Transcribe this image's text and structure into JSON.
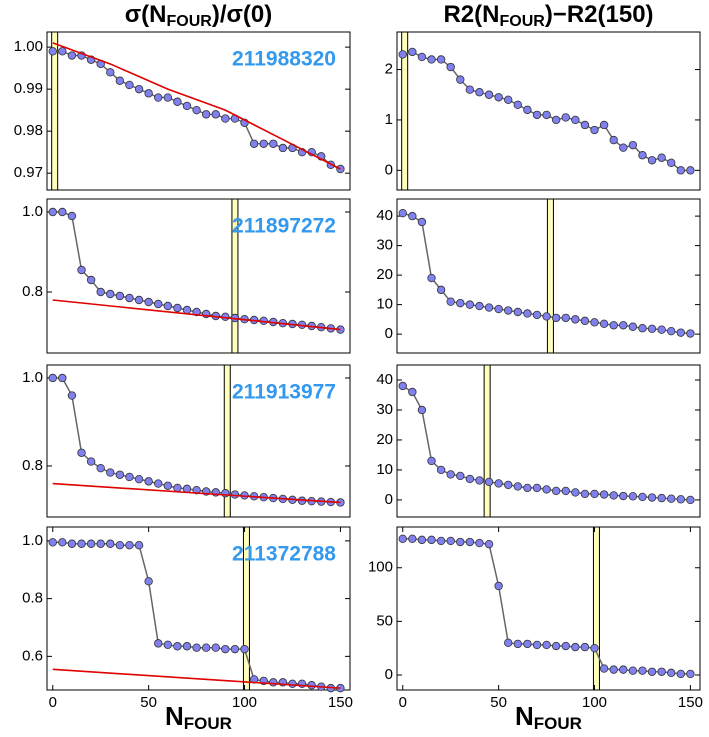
{
  "chart_data": [
    {
      "type": "line",
      "title": [
        "σ(N",
        "FOUR",
        ")/σ(0)"
      ],
      "label": "211988320",
      "ylim": [
        0.966,
        1.0036
      ],
      "yticks": [
        0.97,
        0.98,
        0.99,
        {
          "value": 1,
          "label": "1.00"
        }
      ],
      "xlim": [
        -3,
        155
      ],
      "x": [
        0,
        5,
        10,
        15,
        20,
        25,
        30,
        35,
        40,
        45,
        50,
        55,
        60,
        65,
        70,
        75,
        80,
        85,
        90,
        95,
        100,
        105,
        110,
        115,
        120,
        125,
        130,
        135,
        140,
        145,
        150
      ],
      "values": [
        0.999,
        0.999,
        0.998,
        0.998,
        0.997,
        0.996,
        0.994,
        0.992,
        0.991,
        0.99,
        0.989,
        0.988,
        0.988,
        0.987,
        0.986,
        0.985,
        0.984,
        0.984,
        0.983,
        0.983,
        0.982,
        0.977,
        0.977,
        0.977,
        0.976,
        0.976,
        0.975,
        0.975,
        0.974,
        0.972,
        0.971
      ],
      "color": "#8080ee",
      "fit": {
        "x": [
          0,
          30,
          60,
          90,
          120,
          150
        ],
        "values": [
          1.001,
          0.996,
          0.99,
          0.985,
          0.978,
          0.971
        ],
        "color": "#e00000"
      },
      "highlight_x": 1
    },
    {
      "type": "line",
      "title": [
        "R2(N",
        "FOUR",
        ")−R2(150)"
      ],
      "ylim": [
        -0.39,
        2.745
      ],
      "yticks": [
        0,
        1,
        2
      ],
      "xlim": [
        -3,
        155
      ],
      "x": [
        0,
        5,
        10,
        15,
        20,
        25,
        30,
        35,
        40,
        45,
        50,
        55,
        60,
        65,
        70,
        75,
        80,
        85,
        90,
        95,
        100,
        105,
        110,
        115,
        120,
        125,
        130,
        135,
        140,
        145,
        150
      ],
      "values": [
        2.3,
        2.35,
        2.25,
        2.2,
        2.2,
        2.05,
        1.8,
        1.6,
        1.55,
        1.5,
        1.45,
        1.4,
        1.3,
        1.2,
        1.1,
        1.1,
        1.0,
        1.05,
        1.0,
        0.9,
        0.8,
        0.9,
        0.6,
        0.45,
        0.5,
        0.3,
        0.2,
        0.25,
        0.15,
        0.0,
        0.0
      ],
      "color": "#8080ee",
      "highlight_x": 1
    },
    {
      "type": "line",
      "label": "211897272",
      "ylim": [
        0.6475,
        1.0325
      ],
      "yticks": [
        0.8,
        {
          "value": 1,
          "label": "1.0"
        }
      ],
      "xlim": [
        -3,
        155
      ],
      "x": [
        0,
        5,
        10,
        15,
        20,
        25,
        30,
        35,
        40,
        45,
        50,
        55,
        60,
        65,
        70,
        75,
        80,
        85,
        90,
        95,
        100,
        105,
        110,
        115,
        120,
        125,
        130,
        135,
        140,
        145,
        150
      ],
      "values": [
        1.0,
        1.0,
        0.99,
        0.855,
        0.83,
        0.8,
        0.795,
        0.79,
        0.785,
        0.78,
        0.775,
        0.77,
        0.765,
        0.76,
        0.755,
        0.75,
        0.745,
        0.74,
        0.738,
        0.735,
        0.732,
        0.73,
        0.728,
        0.725,
        0.722,
        0.72,
        0.718,
        0.715,
        0.712,
        0.709,
        0.706
      ],
      "color": "#8080ee",
      "fit": {
        "x": [
          0,
          150
        ],
        "values": [
          0.78,
          0.706
        ],
        "color": "#e00000"
      },
      "highlight_x": 95
    },
    {
      "type": "line",
      "ylim": [
        -6.4,
        45.8
      ],
      "yticks": [
        0,
        10,
        20,
        30,
        40
      ],
      "xlim": [
        -3,
        155
      ],
      "x": [
        0,
        5,
        10,
        15,
        20,
        25,
        30,
        35,
        40,
        45,
        50,
        55,
        60,
        65,
        70,
        75,
        80,
        85,
        90,
        95,
        100,
        105,
        110,
        115,
        120,
        125,
        130,
        135,
        140,
        145,
        150
      ],
      "values": [
        41,
        40,
        38,
        19,
        15,
        11,
        10.5,
        10,
        9.5,
        9,
        8.5,
        8,
        7.5,
        7,
        6.5,
        6,
        5.5,
        5.5,
        5,
        4.5,
        4,
        3.5,
        3,
        3,
        2.5,
        2,
        1.8,
        1.5,
        1,
        0.5,
        0.2
      ],
      "color": "#8080ee",
      "highlight_x": 77
    },
    {
      "type": "line",
      "label": "211913977",
      "ylim": [
        0.684,
        1.0295
      ],
      "yticks": [
        0.8,
        {
          "value": 1,
          "label": "1.0"
        }
      ],
      "xlim": [
        -3,
        155
      ],
      "x": [
        0,
        5,
        10,
        15,
        20,
        25,
        30,
        35,
        40,
        45,
        50,
        55,
        60,
        65,
        70,
        75,
        80,
        85,
        90,
        95,
        100,
        105,
        110,
        115,
        120,
        125,
        130,
        135,
        140,
        145,
        150
      ],
      "values": [
        1.0,
        1.0,
        0.96,
        0.83,
        0.81,
        0.795,
        0.785,
        0.78,
        0.775,
        0.77,
        0.765,
        0.76,
        0.755,
        0.75,
        0.748,
        0.745,
        0.742,
        0.74,
        0.738,
        0.735,
        0.733,
        0.731,
        0.729,
        0.727,
        0.725,
        0.723,
        0.721,
        0.72,
        0.719,
        0.718,
        0.717
      ],
      "color": "#8080ee",
      "fit": {
        "x": [
          0,
          150
        ],
        "values": [
          0.76,
          0.717
        ],
        "color": "#e00000"
      },
      "highlight_x": 91
    },
    {
      "type": "line",
      "ylim": [
        -5.7,
        45
      ],
      "yticks": [
        0,
        10,
        20,
        30,
        40
      ],
      "xlim": [
        -3,
        155
      ],
      "x": [
        0,
        5,
        10,
        15,
        20,
        25,
        30,
        35,
        40,
        45,
        50,
        55,
        60,
        65,
        70,
        75,
        80,
        85,
        90,
        95,
        100,
        105,
        110,
        115,
        120,
        125,
        130,
        135,
        140,
        145,
        150
      ],
      "values": [
        38,
        36,
        30,
        13,
        10,
        8.5,
        8,
        7,
        6.5,
        6,
        5.5,
        5,
        4.5,
        4,
        4,
        3.5,
        3,
        3,
        2.5,
        2,
        2,
        1.8,
        1.5,
        1.3,
        1.2,
        1,
        0.8,
        0.6,
        0.4,
        0.2,
        0
      ],
      "color": "#8080ee",
      "highlight_x": 44
    },
    {
      "type": "line",
      "label": "211372788",
      "xlabel": [
        "N",
        "FOUR"
      ],
      "ylim": [
        0.4835,
        1.048
      ],
      "yticks": [
        0.6,
        0.8,
        {
          "value": 1,
          "label": "1.0"
        }
      ],
      "xlim": [
        -3,
        155
      ],
      "xticks": [
        0,
        50,
        100,
        150
      ],
      "x": [
        0,
        5,
        10,
        15,
        20,
        25,
        30,
        35,
        40,
        45,
        50,
        55,
        60,
        65,
        70,
        75,
        80,
        85,
        90,
        95,
        100,
        105,
        110,
        115,
        120,
        125,
        130,
        135,
        140,
        145,
        150
      ],
      "values": [
        0.995,
        0.995,
        0.99,
        0.99,
        0.99,
        0.99,
        0.99,
        0.985,
        0.985,
        0.985,
        0.86,
        0.645,
        0.64,
        0.635,
        0.635,
        0.63,
        0.63,
        0.63,
        0.625,
        0.625,
        0.625,
        0.52,
        0.515,
        0.51,
        0.51,
        0.505,
        0.505,
        0.5,
        0.495,
        0.49,
        0.49
      ],
      "color": "#8080ee",
      "fit": {
        "x": [
          0,
          150
        ],
        "values": [
          0.555,
          0.49
        ],
        "color": "#e00000"
      },
      "highlight_x": 101
    },
    {
      "type": "line",
      "xlabel": [
        "N",
        "FOUR"
      ],
      "ylim": [
        -14,
        138
      ],
      "yticks": [
        0,
        50,
        100
      ],
      "xlim": [
        -3,
        155
      ],
      "xticks": [
        0,
        50,
        100,
        150
      ],
      "x": [
        0,
        5,
        10,
        15,
        20,
        25,
        30,
        35,
        40,
        45,
        50,
        55,
        60,
        65,
        70,
        75,
        80,
        85,
        90,
        95,
        100,
        105,
        110,
        115,
        120,
        125,
        130,
        135,
        140,
        145,
        150
      ],
      "values": [
        127,
        127,
        126,
        126,
        125,
        125,
        124,
        124,
        123,
        122,
        83,
        30,
        29,
        29,
        28,
        28,
        27,
        27,
        26,
        26,
        25,
        6,
        5,
        5,
        4,
        4,
        3,
        3,
        2,
        1,
        1
      ],
      "color": "#8080ee",
      "highlight_x": 101
    }
  ]
}
